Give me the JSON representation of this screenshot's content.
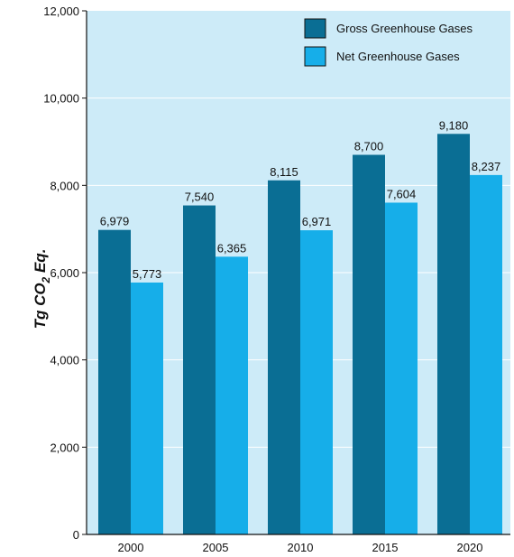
{
  "chart_data": {
    "type": "bar",
    "categories": [
      "2000",
      "2005",
      "2010",
      "2015",
      "2020"
    ],
    "series": [
      {
        "name": "Gross Greenhouse Gases",
        "color": "#0a6e94",
        "values": [
          6979,
          7540,
          8115,
          8700,
          9180
        ]
      },
      {
        "name": "Net Greenhouse Gases",
        "color": "#16aee9",
        "values": [
          5773,
          6365,
          6971,
          7604,
          8237
        ]
      }
    ],
    "data_labels": [
      [
        "6,979",
        "7,540",
        "8,115",
        "8,700",
        "9,180"
      ],
      [
        "5,773",
        "6,365",
        "6,971",
        "7,604",
        "8,237"
      ]
    ],
    "ylabel": "Tg CO₂ Eq.",
    "ylabel_parts": {
      "main": "Tg CO",
      "sub": "2",
      "rest": " Eq."
    },
    "ylim": [
      0,
      12000
    ],
    "yticks": [
      0,
      2000,
      4000,
      6000,
      8000,
      10000,
      12000
    ],
    "ytick_labels": [
      "0",
      "2,000",
      "4,000",
      "6,000",
      "8,000",
      "10,000",
      "12,000"
    ],
    "grid": true,
    "legend_position": "top-right",
    "background_color": "#cdebf8",
    "grid_color": "#ffffff"
  }
}
